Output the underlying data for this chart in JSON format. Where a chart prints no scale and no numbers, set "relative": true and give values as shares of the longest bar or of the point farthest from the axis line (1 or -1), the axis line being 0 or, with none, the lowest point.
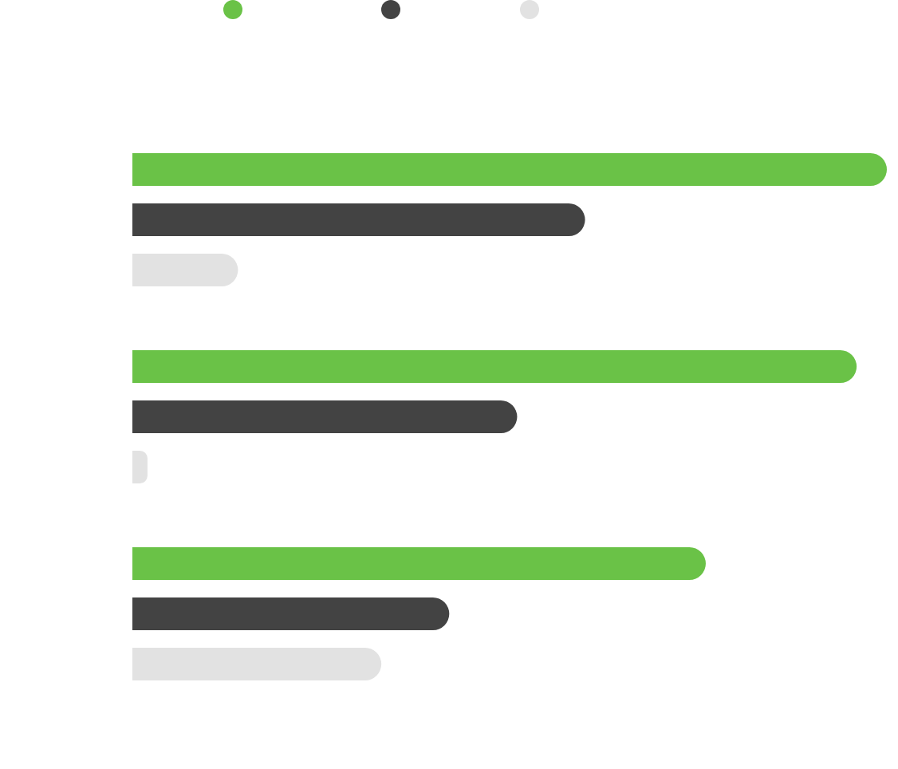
{
  "chart_data": {
    "type": "bar",
    "orientation": "horizontal",
    "relative": true,
    "categories": [
      null,
      null,
      null
    ],
    "series": [
      {
        "color": "#6ac247",
        "values": [
          1,
          0.96,
          0.76
        ]
      },
      {
        "color": "#434343",
        "values": [
          0.6,
          0.51,
          0.42
        ]
      },
      {
        "color": "#e2e2e2",
        "values": [
          0.14,
          0.02,
          0.33
        ]
      }
    ]
  }
}
